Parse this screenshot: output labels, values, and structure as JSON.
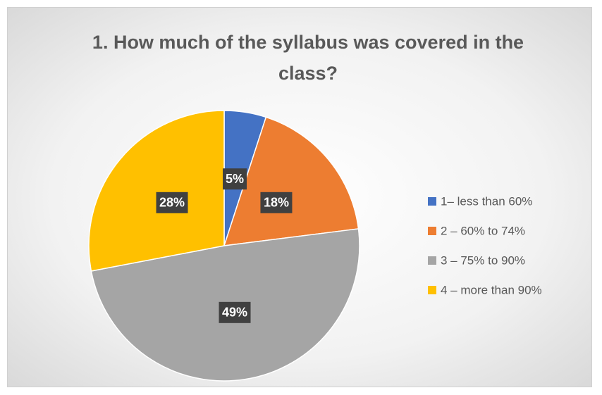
{
  "chart_data": {
    "type": "pie",
    "title": "1. How much of the syllabus was covered in the class?",
    "categories": [
      "1– less than 60%",
      "2 – 60% to 74%",
      "3 – 75% to 90%",
      "4 – more than 90%"
    ],
    "values": [
      5,
      18,
      49,
      28
    ],
    "value_labels": [
      "5%",
      "18%",
      "49%",
      "28%"
    ],
    "colors": [
      "#4472c4",
      "#ed7d31",
      "#a5a5a5",
      "#ffc000"
    ],
    "legend": "right"
  }
}
